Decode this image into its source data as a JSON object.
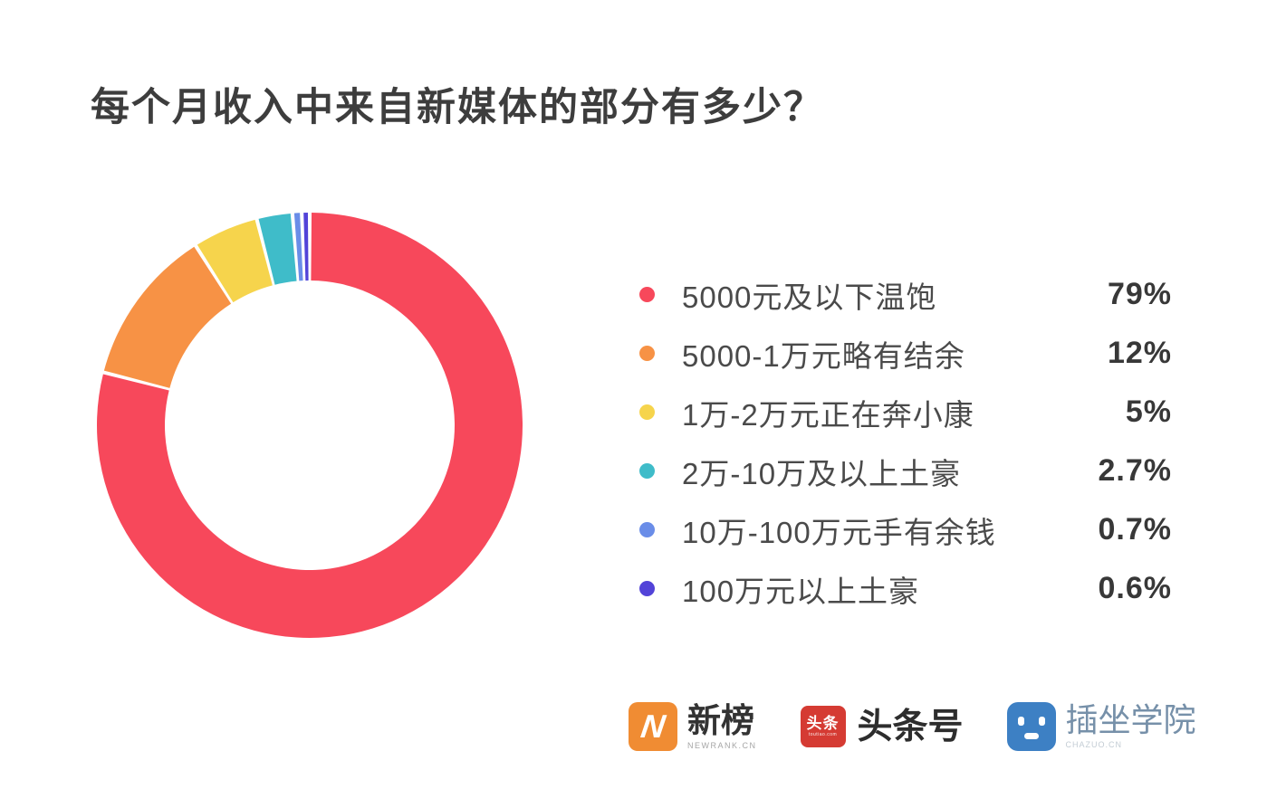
{
  "title": "每个月收入中来自新媒体的部分有多少？",
  "chart_data": {
    "type": "pie",
    "subtype": "donut",
    "title": "每个月收入中来自新媒体的部分有多少？",
    "start_angle_deg": 0,
    "direction": "clockwise",
    "inner_radius_ratio": 0.68,
    "legend_position": "right",
    "slice_gap_deg": 1.0,
    "series": [
      {
        "label": "5000元及以下温饱",
        "value": 79,
        "display": "79%",
        "color": "#F7485B"
      },
      {
        "label": "5000-1万元略有结余",
        "value": 12,
        "display": "12%",
        "color": "#F79245"
      },
      {
        "label": "1万-2万元正在奔小康",
        "value": 5,
        "display": "5%",
        "color": "#F6D44C"
      },
      {
        "label": "2万-10万及以上土豪",
        "value": 2.7,
        "display": "2.7%",
        "color": "#3FBCC9"
      },
      {
        "label": "10万-100万元手有余钱",
        "value": 0.7,
        "display": "0.7%",
        "color": "#6A8DE8"
      },
      {
        "label": "100万元以上土豪",
        "value": 0.6,
        "display": "0.6%",
        "color": "#5243D8"
      }
    ]
  },
  "footer": {
    "logos": {
      "newrank": {
        "icon_letter": "N",
        "icon_color": "#F08C33",
        "label": "新榜",
        "sub": "NEWRANK.CN"
      },
      "toutiao": {
        "icon_text": "头条",
        "icon_tiny": "toutiao.com",
        "icon_color": "#D53B33",
        "label": "头条号"
      },
      "chazuo": {
        "icon_color": "#3D80C4",
        "label": "插坐学院",
        "sub": "CHAZUO.CN"
      }
    }
  }
}
